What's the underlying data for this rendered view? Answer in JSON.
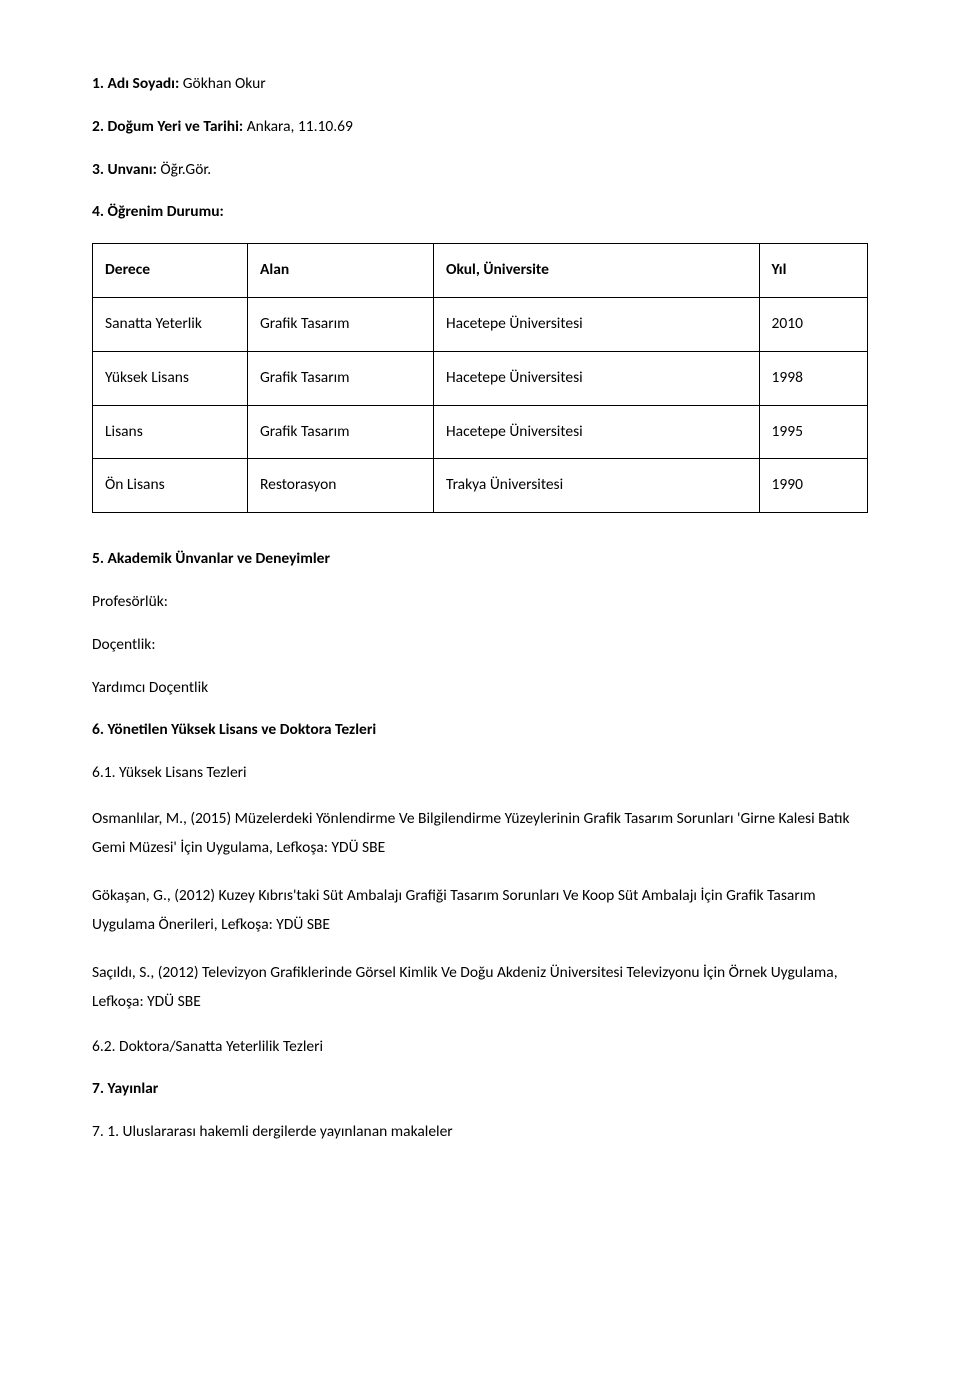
{
  "s1": {
    "label": "1. Adı Soyadı:",
    "value": "Gökhan Okur"
  },
  "s2": {
    "label": "2. Doğum Yeri ve Tarihi:",
    "value": "Ankara, 11.10.69"
  },
  "s3": {
    "label": "3. Unvanı:",
    "value": "Öğr.Gör."
  },
  "s4": {
    "label": "4. Öğrenim Durumu:"
  },
  "table": {
    "headers": {
      "derece": "Derece",
      "alan": "Alan",
      "okul": "Okul, Üniversite",
      "yil": "Yıl"
    },
    "rows": [
      {
        "derece": "Sanatta Yeterlik",
        "alan": "Grafik Tasarım",
        "okul": "Hacetepe Üniversitesi",
        "yil": "2010"
      },
      {
        "derece": "Yüksek Lisans",
        "alan": "Grafik Tasarım",
        "okul": "Hacetepe Üniversitesi",
        "yil": "1998"
      },
      {
        "derece": "Lisans",
        "alan": "Grafik Tasarım",
        "okul": "Hacetepe Üniversitesi",
        "yil": "1995"
      },
      {
        "derece": "Ön Lisans",
        "alan": "Restorasyon",
        "okul": "Trakya Üniversitesi",
        "yil": "1990"
      }
    ]
  },
  "s5": "5. Akademik Ünvanlar ve Deneyimler",
  "prof": "Profesörlük:",
  "doc": "Doçentlik:",
  "yard": "Yardımcı Doçentlik",
  "s6": "6. Yönetilen Yüksek Lisans ve Doktora Tezleri",
  "s6_1": "6.1. Yüksek Lisans Tezleri",
  "tez": {
    "t1": "Osmanlılar, M., (2015) Müzelerdeki Yönlendirme Ve Bilgilendirme Yüzeylerinin Grafik Tasarım Sorunları 'Girne Kalesi Batık Gemi Müzesi' İçin Uygulama, Lefkoşa: YDÜ SBE",
    "t2": "Gökaşan, G., (2012) Kuzey Kıbrıs'taki Süt Ambalajı Grafiği Tasarım Sorunları Ve Koop Süt Ambalajı İçin Grafik Tasarım Uygulama Önerileri, Lefkoşa: YDÜ SBE",
    "t3": "Saçıldı, S., (2012) Televizyon Grafiklerinde Görsel Kimlik Ve Doğu Akdeniz Üniversitesi Televizyonu İçin Örnek Uygulama, Lefkoşa: YDÜ SBE"
  },
  "s6_2": "6.2. Doktora/Sanatta Yeterlilik Tezleri",
  "s7": "7. Yayınlar",
  "s7_1": "7. 1. Uluslararası hakemli dergilerde yayınlanan makaleler"
}
